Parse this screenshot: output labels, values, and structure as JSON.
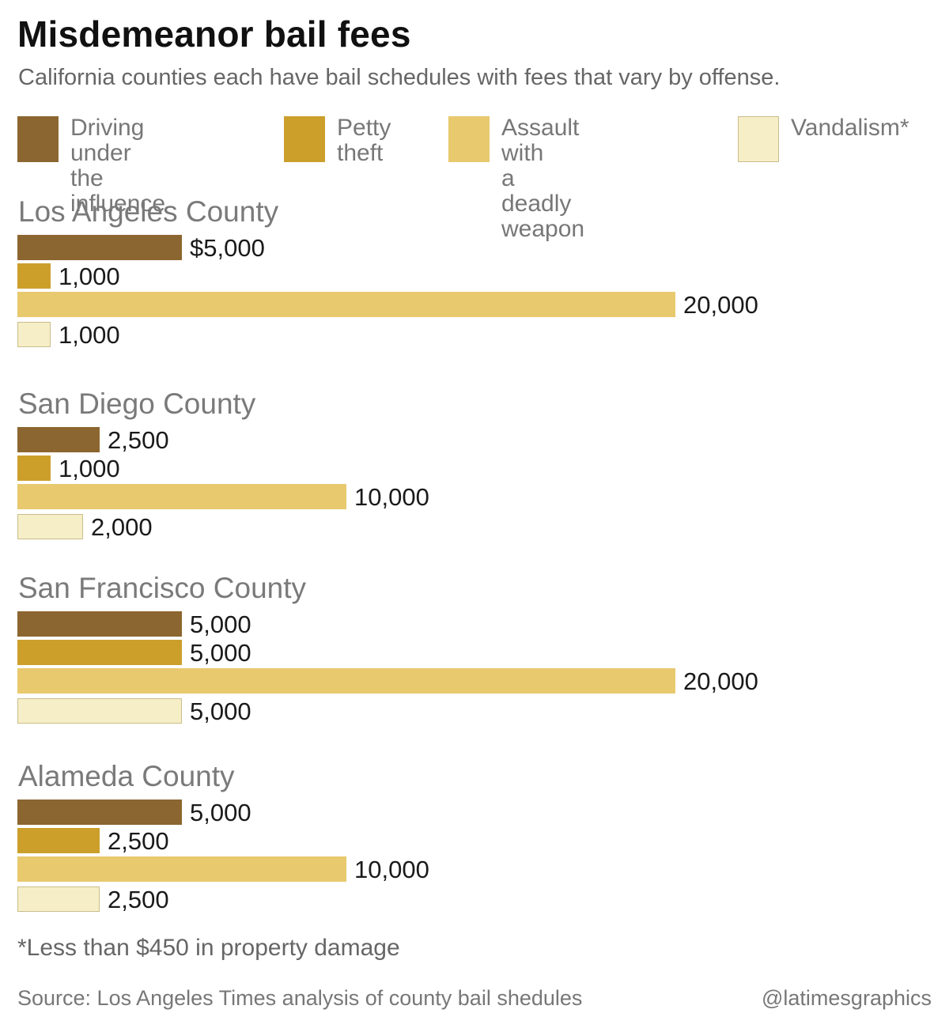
{
  "header": {
    "title": "Misdemeanor bail fees",
    "subtitle": "California counties each have bail schedules with fees that vary by offense."
  },
  "legend": [
    {
      "label": "Driving under\nthe influence",
      "color": "#8c6630"
    },
    {
      "label": "Petty\ntheft",
      "color": "#cc9f2b"
    },
    {
      "label": "Assault with\na deadly weapon",
      "color": "#e8c96e"
    },
    {
      "label": "Vandalism*",
      "color": "#f6eec6"
    }
  ],
  "chart_data": {
    "type": "bar",
    "orientation": "horizontal",
    "value_prefix_first": "$",
    "series": [
      "Driving under the influence",
      "Petty theft",
      "Assault with a deadly weapon",
      "Vandalism*"
    ],
    "groups": [
      {
        "name": "Los Angeles County",
        "values": [
          5000,
          1000,
          20000,
          1000
        ],
        "labels": [
          "$5,000",
          "1,000",
          "20,000",
          "1,000"
        ]
      },
      {
        "name": "San Diego County",
        "values": [
          2500,
          1000,
          10000,
          2000
        ],
        "labels": [
          "2,500",
          "1,000",
          "10,000",
          "2,000"
        ]
      },
      {
        "name": "San Francisco County",
        "values": [
          5000,
          5000,
          20000,
          5000
        ],
        "labels": [
          "5,000",
          "5,000",
          "20,000",
          "5,000"
        ]
      },
      {
        "name": "Alameda County",
        "values": [
          5000,
          2500,
          10000,
          2500
        ],
        "labels": [
          "5,000",
          "2,500",
          "10,000",
          "2,500"
        ]
      }
    ],
    "xlim": [
      0,
      20000
    ],
    "grid": false
  },
  "footer": {
    "footnote": "*Less than $450 in property damage",
    "source": "Source: Los Angeles Times analysis of county bail shedules",
    "credit": "@latimesgraphics"
  }
}
